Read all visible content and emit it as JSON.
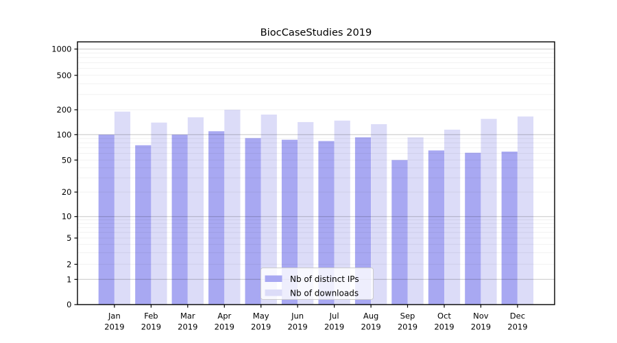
{
  "chart_data": {
    "type": "bar",
    "title": "BiocCaseStudies 2019",
    "x_axis": {
      "months": [
        "Jan",
        "Feb",
        "Mar",
        "Apr",
        "May",
        "Jun",
        "Jul",
        "Aug",
        "Sep",
        "Oct",
        "Nov",
        "Dec"
      ],
      "year": "2019"
    },
    "y_axis": {
      "scale": "symlog",
      "tick_labels": [
        1000,
        500,
        200,
        100,
        50,
        20,
        10,
        5,
        2,
        1,
        0
      ],
      "ylim": [
        0,
        1200
      ],
      "grid": "major-and-minor",
      "minor_gridlines": [
        2,
        3,
        4,
        5,
        6,
        7,
        8,
        9,
        20,
        30,
        40,
        50,
        60,
        70,
        80,
        90,
        200,
        300,
        400,
        500,
        600,
        700,
        800,
        900
      ],
      "major_gridlines": [
        1,
        10,
        100,
        1000
      ]
    },
    "series": [
      {
        "name": "Nb of distinct IPs",
        "color": "#a8a8f2",
        "values": [
          100,
          75,
          100,
          110,
          91,
          87,
          84,
          93,
          50,
          65,
          61,
          63
        ]
      },
      {
        "name": "Nb of downloads",
        "color": "#dcdcf8",
        "values": [
          190,
          140,
          162,
          200,
          175,
          142,
          148,
          134,
          93,
          115,
          155,
          166
        ]
      }
    ],
    "legend": {
      "position": "lower-center-inside",
      "entries": [
        "Nb of distinct IPs",
        "Nb of downloads"
      ]
    }
  }
}
